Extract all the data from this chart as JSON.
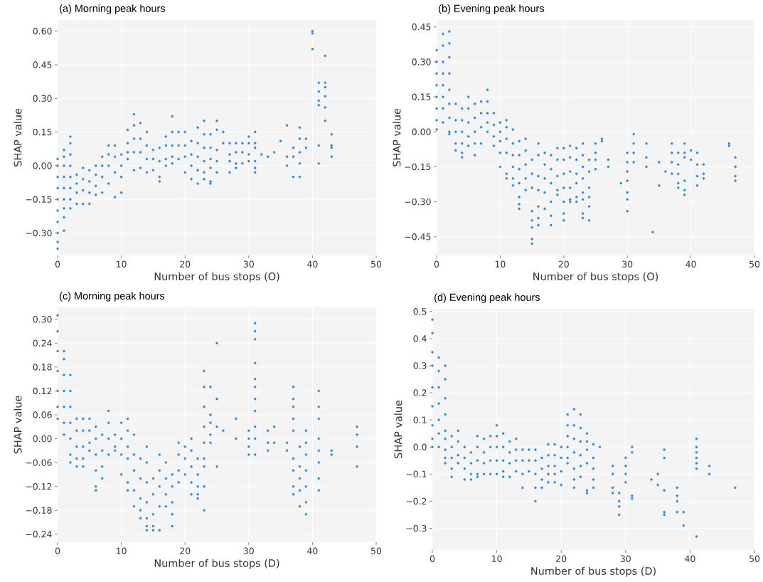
{
  "chart_data": [
    {
      "type": "scatter",
      "title": "(a) Morning peak hours",
      "xlabel": "Number of bus stops (O)",
      "ylabel": "SHAP value",
      "grid": true,
      "marker": "circle",
      "xlim": [
        0,
        50
      ],
      "xticks": [
        0,
        10,
        20,
        30,
        40,
        50
      ],
      "ylim": [
        -0.4,
        0.65
      ],
      "yticks": [
        {
          "value": -0.3,
          "label": "−0.30"
        },
        {
          "value": -0.15,
          "label": "−0.15"
        },
        {
          "value": 0,
          "label": "0.00"
        },
        {
          "value": 0.15,
          "label": "0.15"
        },
        {
          "value": 0.3,
          "label": "0.30"
        },
        {
          "value": 0.45,
          "label": "0.45"
        },
        {
          "value": 0.6,
          "label": "0.60"
        }
      ],
      "series": [
        {
          "color": "#1e88e5",
          "x": [
            0,
            0,
            0,
            0,
            0,
            0,
            0,
            0,
            0,
            0,
            1,
            1,
            1,
            1,
            1,
            1,
            1,
            1,
            1,
            2,
            2,
            2,
            2,
            2,
            2,
            2,
            2,
            3,
            3,
            3,
            3,
            4,
            4,
            4,
            4,
            5,
            5,
            5,
            5,
            6,
            6,
            6,
            6,
            7,
            7,
            7,
            7,
            8,
            8,
            8,
            8,
            9,
            9,
            9,
            9,
            10,
            10,
            10,
            10,
            11,
            11,
            11,
            11,
            12,
            12,
            12,
            12,
            12,
            13,
            13,
            13,
            13,
            14,
            14,
            14,
            14,
            15,
            15,
            15,
            16,
            16,
            16,
            16,
            17,
            17,
            17,
            17,
            18,
            18,
            18,
            18,
            18,
            19,
            19,
            19,
            20,
            20,
            20,
            20,
            21,
            21,
            21,
            21,
            22,
            22,
            22,
            22,
            22,
            23,
            23,
            23,
            23,
            23,
            23,
            24,
            24,
            24,
            24,
            24,
            24,
            25,
            25,
            25,
            25,
            25,
            26,
            26,
            27,
            27,
            27,
            27,
            28,
            28,
            28,
            28,
            29,
            29,
            29,
            30,
            30,
            30,
            30,
            31,
            31,
            31,
            31,
            31,
            31,
            32,
            33,
            34,
            35,
            36,
            36,
            36,
            37,
            37,
            37,
            38,
            38,
            38,
            38,
            38,
            39,
            39,
            40,
            40,
            40,
            41,
            41,
            41,
            41,
            41,
            41,
            42,
            42,
            42,
            42,
            42,
            42,
            43,
            43,
            43,
            43
          ],
          "values": [
            0.03,
            0.0,
            -0.05,
            -0.1,
            -0.15,
            -0.2,
            -0.25,
            -0.3,
            -0.34,
            -0.37,
            0.07,
            0.04,
            0.0,
            -0.05,
            -0.1,
            -0.15,
            -0.19,
            -0.23,
            -0.29,
            0.13,
            0.1,
            0.05,
            0.0,
            -0.05,
            -0.1,
            -0.15,
            -0.19,
            -0.04,
            -0.08,
            -0.12,
            -0.17,
            -0.01,
            -0.06,
            -0.11,
            -0.17,
            -0.02,
            -0.07,
            -0.12,
            -0.17,
            0.0,
            -0.04,
            -0.09,
            -0.13,
            0.04,
            0.0,
            -0.05,
            -0.12,
            0.09,
            0.05,
            0.0,
            -0.08,
            0.09,
            0.04,
            -0.03,
            -0.14,
            0.05,
            0.0,
            -0.05,
            -0.12,
            0.16,
            0.1,
            0.06,
            0.03,
            0.23,
            0.18,
            0.12,
            0.06,
            -0.02,
            0.19,
            0.12,
            0.06,
            -0.01,
            0.15,
            0.09,
            0.03,
            -0.03,
            0.07,
            0.03,
            -0.02,
            0.08,
            0.02,
            -0.05,
            -0.07,
            0.13,
            0.09,
            0.03,
            0.0,
            0.22,
            0.15,
            0.09,
            0.04,
            0.01,
            0.15,
            0.09,
            0.03,
            0.15,
            0.09,
            0.04,
            -0.03,
            0.11,
            0.05,
            0.0,
            -0.06,
            0.17,
            0.1,
            0.04,
            -0.02,
            -0.08,
            0.2,
            0.14,
            0.08,
            0.02,
            -0.03,
            -0.06,
            0.14,
            0.08,
            0.03,
            -0.01,
            -0.07,
            -0.08,
            0.2,
            0.16,
            0.07,
            0.02,
            -0.03,
            0.15,
            0.1,
            0.1,
            0.05,
            0.02,
            -0.03,
            0.1,
            0.06,
            0.01,
            -0.01,
            0.1,
            0.06,
            0.01,
            0.13,
            0.1,
            0.05,
            0.02,
            0.15,
            0.1,
            0.08,
            0.02,
            -0.01,
            -0.03,
            0.05,
            0.04,
            0.06,
            0.11,
            0.18,
            0.04,
            0.0,
            0.08,
            0.04,
            -0.05,
            0.17,
            0.12,
            0.06,
            0.01,
            -0.05,
            0.12,
            0.08,
            0.6,
            0.59,
            0.52,
            0.37,
            0.33,
            0.29,
            0.27,
            0.09,
            0.01,
            0.49,
            0.37,
            0.35,
            0.31,
            0.26,
            0.2,
            0.14,
            0.09,
            0.08,
            0.04
          ]
        }
      ]
    },
    {
      "type": "scatter",
      "title": "(b) Evening peak hours",
      "xlabel": "Number of bus stops (O)",
      "ylabel": "SHAP value",
      "grid": true,
      "marker": "circle",
      "xlim": [
        0,
        50
      ],
      "xticks": [
        0,
        10,
        20,
        30,
        40,
        50
      ],
      "ylim": [
        -0.53,
        0.48
      ],
      "yticks": [
        {
          "value": -0.45,
          "label": "−0.45"
        },
        {
          "value": -0.3,
          "label": "−0.30"
        },
        {
          "value": -0.15,
          "label": "−0.15"
        },
        {
          "value": 0,
          "label": "0.00"
        },
        {
          "value": 0.15,
          "label": "0.15"
        },
        {
          "value": 0.3,
          "label": "0.30"
        },
        {
          "value": 0.45,
          "label": "0.45"
        }
      ],
      "series": [
        {
          "color": "#1e88e5",
          "x": [
            0,
            0,
            0,
            0,
            0,
            0,
            0,
            0,
            1,
            1,
            1,
            1,
            1,
            1,
            1,
            1,
            2,
            2,
            2,
            2,
            2,
            2,
            2,
            2,
            2,
            3,
            3,
            3,
            3,
            3,
            4,
            4,
            4,
            4,
            4,
            4,
            5,
            5,
            5,
            5,
            5,
            6,
            6,
            6,
            6,
            6,
            7,
            7,
            7,
            7,
            8,
            8,
            8,
            8,
            8,
            9,
            9,
            9,
            9,
            10,
            10,
            10,
            10,
            10,
            11,
            11,
            11,
            11,
            11,
            11,
            12,
            12,
            12,
            12,
            12,
            12,
            13,
            13,
            13,
            13,
            13,
            13,
            13,
            14,
            14,
            14,
            14,
            14,
            15,
            15,
            15,
            15,
            15,
            15,
            15,
            15,
            16,
            16,
            16,
            16,
            16,
            16,
            16,
            17,
            17,
            17,
            17,
            17,
            18,
            18,
            18,
            18,
            18,
            18,
            19,
            19,
            19,
            19,
            19,
            20,
            20,
            20,
            20,
            20,
            20,
            20,
            21,
            21,
            21,
            21,
            21,
            21,
            22,
            22,
            22,
            22,
            22,
            22,
            23,
            23,
            23,
            23,
            23,
            23,
            23,
            23,
            24,
            24,
            24,
            24,
            24,
            24,
            25,
            25,
            25,
            25,
            26,
            26,
            27,
            27,
            29,
            30,
            30,
            30,
            30,
            30,
            30,
            30,
            31,
            31,
            31,
            31,
            33,
            33,
            33,
            34,
            35,
            35,
            36,
            37,
            37,
            37,
            37,
            38,
            38,
            38,
            38,
            38,
            39,
            39,
            39,
            39,
            39,
            39,
            40,
            40,
            41,
            41,
            41,
            41,
            42,
            42,
            42,
            46,
            46,
            47,
            47,
            47,
            47
          ],
          "values": [
            0.35,
            0.3,
            0.25,
            0.2,
            0.15,
            0.1,
            0.05,
            0.01,
            0.42,
            0.37,
            0.3,
            0.25,
            0.2,
            0.15,
            0.1,
            0.04,
            0.43,
            0.38,
            0.32,
            0.25,
            0.18,
            0.12,
            0.06,
            0.0,
            -0.01,
            0.12,
            0.05,
            0.0,
            -0.05,
            -0.08,
            0.1,
            0.05,
            0.0,
            -0.05,
            -0.09,
            -0.11,
            0.15,
            0.1,
            0.04,
            -0.02,
            -0.06,
            0.12,
            0.06,
            0.0,
            -0.05,
            -0.1,
            0.13,
            0.08,
            0.02,
            -0.05,
            0.18,
            0.13,
            0.08,
            0.04,
            0.0,
            0.08,
            0.03,
            -0.02,
            -0.06,
            0.04,
            0.0,
            -0.04,
            -0.09,
            -0.15,
            0.05,
            0.02,
            -0.03,
            -0.09,
            -0.18,
            -0.2,
            0.01,
            -0.05,
            -0.1,
            -0.15,
            -0.2,
            -0.23,
            -0.04,
            -0.1,
            -0.16,
            -0.22,
            -0.28,
            -0.31,
            -0.33,
            -0.03,
            -0.08,
            -0.14,
            -0.2,
            -0.25,
            -0.12,
            -0.18,
            -0.24,
            -0.34,
            -0.38,
            -0.41,
            -0.46,
            -0.48,
            -0.05,
            -0.1,
            -0.19,
            -0.25,
            -0.32,
            -0.37,
            -0.4,
            -0.09,
            -0.14,
            -0.2,
            -0.26,
            -0.33,
            -0.1,
            -0.16,
            -0.22,
            -0.3,
            -0.36,
            -0.4,
            -0.07,
            -0.12,
            -0.19,
            -0.25,
            -0.27,
            -0.07,
            -0.12,
            -0.18,
            -0.24,
            -0.3,
            -0.35,
            -0.38,
            -0.06,
            -0.11,
            -0.17,
            -0.24,
            -0.29,
            -0.3,
            -0.07,
            -0.12,
            -0.18,
            -0.22,
            -0.28,
            -0.3,
            -0.05,
            -0.1,
            -0.15,
            -0.2,
            -0.26,
            -0.29,
            -0.35,
            -0.37,
            -0.12,
            -0.17,
            -0.24,
            -0.28,
            -0.32,
            -0.38,
            -0.05,
            -0.09,
            -0.12,
            -0.16,
            -0.03,
            -0.04,
            -0.12,
            -0.15,
            -0.22,
            -0.09,
            -0.13,
            -0.17,
            -0.21,
            -0.26,
            -0.29,
            -0.34,
            -0.01,
            -0.05,
            -0.09,
            -0.13,
            -0.05,
            -0.11,
            -0.15,
            -0.43,
            -0.13,
            -0.23,
            -0.17,
            -0.05,
            -0.09,
            -0.13,
            -0.18,
            -0.09,
            -0.14,
            -0.18,
            -0.22,
            -0.24,
            -0.05,
            -0.09,
            -0.11,
            -0.21,
            -0.25,
            -0.27,
            -0.08,
            -0.12,
            -0.09,
            -0.14,
            -0.19,
            -0.23,
            -0.14,
            -0.18,
            -0.2,
            -0.05,
            -0.06,
            -0.11,
            -0.15,
            -0.19,
            -0.21
          ]
        }
      ]
    },
    {
      "type": "scatter",
      "title": "(c) Morning peak hours",
      "xlabel": "Number of bus stops (D)",
      "ylabel": "SHAP value",
      "grid": true,
      "marker": "circle",
      "xlim": [
        0,
        50
      ],
      "xticks": [
        0,
        10,
        20,
        30,
        40,
        50
      ],
      "ylim": [
        -0.26,
        0.33
      ],
      "yticks": [
        {
          "value": -0.24,
          "label": "−0.24"
        },
        {
          "value": -0.18,
          "label": "−0.18"
        },
        {
          "value": -0.12,
          "label": "−0.12"
        },
        {
          "value": -0.06,
          "label": "−0.06"
        },
        {
          "value": 0,
          "label": "0.00"
        },
        {
          "value": 0.06,
          "label": "0.06"
        },
        {
          "value": 0.12,
          "label": "0.12"
        },
        {
          "value": 0.18,
          "label": "0.18"
        },
        {
          "value": 0.24,
          "label": "0.24"
        },
        {
          "value": 0.3,
          "label": "0.30"
        }
      ],
      "series": [
        {
          "color": "#1e88e5",
          "x": [
            0,
            0,
            0,
            0,
            0,
            0,
            0,
            1,
            1,
            1,
            1,
            1,
            1,
            1,
            2,
            2,
            2,
            2,
            2,
            2,
            2,
            3,
            3,
            3,
            3,
            3,
            4,
            4,
            4,
            4,
            4,
            5,
            5,
            5,
            5,
            6,
            6,
            6,
            6,
            6,
            6,
            7,
            7,
            7,
            7,
            8,
            8,
            8,
            8,
            9,
            9,
            9,
            10,
            10,
            10,
            10,
            11,
            11,
            11,
            11,
            11,
            11,
            12,
            12,
            12,
            12,
            12,
            13,
            13,
            13,
            13,
            13,
            14,
            14,
            14,
            14,
            14,
            14,
            14,
            15,
            15,
            15,
            15,
            15,
            16,
            16,
            16,
            16,
            16,
            17,
            17,
            17,
            17,
            18,
            18,
            18,
            18,
            18,
            19,
            19,
            19,
            19,
            20,
            20,
            20,
            21,
            21,
            21,
            21,
            21,
            22,
            22,
            22,
            22,
            22,
            23,
            23,
            23,
            23,
            23,
            23,
            23,
            23,
            23,
            24,
            24,
            24,
            24,
            24,
            25,
            25,
            25,
            25,
            26,
            28,
            28,
            30,
            30,
            30,
            30,
            31,
            31,
            31,
            31,
            31,
            31,
            31,
            31,
            31,
            31,
            31,
            33,
            33,
            33,
            34,
            34,
            36,
            36,
            37,
            37,
            37,
            37,
            37,
            37,
            37,
            37,
            37,
            38,
            38,
            38,
            38,
            38,
            39,
            39,
            39,
            39,
            39,
            39,
            39,
            41,
            41,
            41,
            41,
            41,
            41,
            41,
            41,
            43,
            43,
            47,
            47,
            47,
            47
          ],
          "values": [
            0.31,
            0.27,
            0.22,
            0.17,
            0.12,
            0.08,
            0.05,
            0.22,
            0.2,
            0.16,
            0.12,
            0.08,
            0.04,
            0.01,
            0.16,
            0.12,
            0.08,
            0.04,
            0.0,
            -0.04,
            -0.06,
            0.05,
            0.02,
            -0.02,
            -0.05,
            -0.07,
            0.05,
            0.02,
            -0.02,
            -0.05,
            -0.07,
            0.05,
            0.02,
            -0.01,
            -0.03,
            0.03,
            0.0,
            -0.04,
            -0.08,
            -0.12,
            -0.13,
            0.01,
            -0.03,
            -0.07,
            -0.1,
            0.07,
            0.04,
            0.0,
            -0.04,
            0.01,
            -0.02,
            -0.03,
            0.04,
            0.0,
            -0.04,
            -0.09,
            0.05,
            0.02,
            -0.02,
            -0.05,
            -0.11,
            -0.13,
            0.01,
            -0.04,
            -0.08,
            -0.13,
            -0.17,
            -0.05,
            -0.1,
            -0.15,
            -0.18,
            -0.2,
            -0.02,
            -0.06,
            -0.11,
            -0.16,
            -0.2,
            -0.22,
            -0.23,
            -0.1,
            -0.14,
            -0.19,
            -0.22,
            -0.23,
            -0.04,
            -0.08,
            -0.12,
            -0.17,
            -0.23,
            -0.06,
            -0.1,
            -0.14,
            -0.17,
            -0.09,
            -0.12,
            -0.16,
            -0.19,
            -0.22,
            -0.01,
            -0.04,
            -0.08,
            -0.11,
            -0.02,
            -0.05,
            -0.09,
            0.0,
            -0.03,
            -0.07,
            -0.11,
            -0.14,
            -0.05,
            -0.09,
            -0.12,
            -0.14,
            -0.15,
            0.17,
            0.13,
            0.08,
            0.03,
            -0.01,
            -0.05,
            -0.07,
            -0.12,
            -0.18,
            0.13,
            0.06,
            0.04,
            0.01,
            -0.01,
            0.24,
            0.1,
            0.03,
            -0.07,
            0.02,
            0.05,
            0.0,
            0.02,
            0.0,
            -0.02,
            -0.04,
            0.29,
            0.27,
            0.25,
            0.19,
            0.15,
            0.13,
            0.1,
            0.07,
            0.03,
            0.0,
            -0.04,
            0.02,
            -0.01,
            -0.03,
            0.03,
            -0.01,
            -0.01,
            -0.03,
            0.13,
            0.1,
            0.08,
            0.05,
            0.02,
            -0.05,
            -0.08,
            -0.12,
            -0.14,
            -0.02,
            -0.07,
            -0.1,
            -0.13,
            -0.17,
            0.02,
            -0.01,
            -0.04,
            -0.08,
            -0.12,
            -0.16,
            -0.19,
            0.12,
            0.08,
            0.05,
            0.0,
            -0.03,
            -0.06,
            -0.1,
            -0.13,
            -0.03,
            -0.04,
            0.03,
            0.01,
            -0.02,
            -0.07
          ]
        }
      ]
    },
    {
      "type": "scatter",
      "title": "(d) Evening peak hours",
      "xlabel": "Number of bus stops (D)",
      "ylabel": "SHAP value",
      "grid": true,
      "marker": "circle",
      "xlim": [
        0,
        50
      ],
      "xticks": [
        0,
        10,
        20,
        30,
        40,
        50
      ],
      "ylim": [
        -0.38,
        0.51
      ],
      "yticks": [
        {
          "value": -0.3,
          "label": "−0.3"
        },
        {
          "value": -0.2,
          "label": "−0.2"
        },
        {
          "value": -0.1,
          "label": "−0.1"
        },
        {
          "value": 0,
          "label": "0.0"
        },
        {
          "value": 0.1,
          "label": "0.1"
        },
        {
          "value": 0.2,
          "label": "0.2"
        },
        {
          "value": 0.3,
          "label": "0.3"
        },
        {
          "value": 0.4,
          "label": "0.4"
        },
        {
          "value": 0.5,
          "label": "0.5"
        }
      ],
      "series": [
        {
          "color": "#1e88e5",
          "x": [
            0,
            0,
            0,
            0,
            0,
            0,
            0,
            0,
            0,
            1,
            1,
            1,
            1,
            1,
            1,
            1,
            2,
            2,
            2,
            2,
            2,
            2,
            2,
            2,
            2,
            3,
            3,
            3,
            3,
            3,
            4,
            4,
            4,
            4,
            5,
            5,
            5,
            5,
            6,
            6,
            6,
            6,
            7,
            7,
            7,
            7,
            7,
            8,
            8,
            8,
            8,
            9,
            9,
            9,
            9,
            10,
            10,
            10,
            10,
            10,
            11,
            11,
            11,
            11,
            11,
            12,
            12,
            12,
            12,
            13,
            13,
            13,
            13,
            14,
            14,
            14,
            14,
            15,
            15,
            15,
            16,
            16,
            16,
            16,
            16,
            17,
            17,
            17,
            17,
            18,
            18,
            18,
            18,
            18,
            19,
            19,
            19,
            19,
            19,
            20,
            20,
            20,
            20,
            21,
            21,
            21,
            21,
            21,
            21,
            22,
            22,
            22,
            22,
            22,
            22,
            22,
            23,
            23,
            23,
            23,
            23,
            23,
            24,
            24,
            24,
            24,
            24,
            24,
            25,
            25,
            25,
            25,
            25,
            26,
            28,
            28,
            28,
            28,
            29,
            29,
            29,
            29,
            30,
            30,
            30,
            30,
            31,
            31,
            31,
            31,
            34,
            35,
            35,
            36,
            36,
            36,
            36,
            36,
            38,
            38,
            38,
            38,
            39,
            39,
            41,
            41,
            41,
            41,
            41,
            41,
            41,
            43,
            43,
            47
          ],
          "values": [
            0.47,
            0.42,
            0.35,
            0.3,
            0.22,
            0.15,
            0.08,
            0.03,
            0.0,
            0.33,
            0.28,
            0.22,
            0.16,
            0.1,
            0.05,
            0.0,
            0.3,
            0.25,
            0.18,
            0.12,
            0.06,
            0.03,
            -0.01,
            -0.04,
            -0.06,
            0.04,
            0.0,
            -0.04,
            -0.08,
            -0.11,
            0.06,
            0.02,
            -0.03,
            -0.06,
            0.0,
            -0.04,
            -0.08,
            -0.12,
            -0.02,
            -0.06,
            -0.1,
            -0.12,
            0.04,
            0.0,
            -0.05,
            -0.1,
            -0.11,
            0.03,
            -0.02,
            -0.06,
            -0.1,
            0.04,
            0.0,
            -0.05,
            -0.1,
            0.08,
            0.04,
            0.0,
            -0.05,
            -0.1,
            0.05,
            0.0,
            -0.05,
            -0.09,
            -0.11,
            0.02,
            -0.02,
            -0.06,
            -0.11,
            0.03,
            -0.01,
            -0.05,
            -0.09,
            -0.01,
            -0.05,
            -0.1,
            -0.15,
            -0.01,
            -0.05,
            -0.09,
            -0.01,
            -0.05,
            -0.1,
            -0.15,
            -0.2,
            -0.04,
            -0.08,
            -0.12,
            -0.15,
            0.01,
            -0.03,
            -0.07,
            -0.1,
            -0.13,
            0.01,
            -0.03,
            -0.07,
            -0.1,
            -0.13,
            0.0,
            -0.04,
            -0.09,
            -0.14,
            0.12,
            0.08,
            0.04,
            0.0,
            -0.04,
            -0.06,
            0.14,
            0.08,
            0.03,
            -0.02,
            -0.08,
            -0.12,
            -0.15,
            0.12,
            0.07,
            0.02,
            -0.03,
            -0.07,
            -0.11,
            0.05,
            0.02,
            -0.01,
            -0.06,
            -0.16,
            -0.17,
            0.01,
            -0.04,
            -0.08,
            -0.12,
            -0.15,
            0.0,
            -0.07,
            -0.1,
            -0.15,
            -0.17,
            -0.17,
            -0.2,
            -0.22,
            -0.25,
            -0.04,
            -0.07,
            -0.1,
            -0.13,
            0.0,
            -0.02,
            -0.18,
            -0.19,
            -0.12,
            -0.1,
            -0.14,
            -0.01,
            -0.04,
            -0.16,
            -0.24,
            -0.25,
            -0.15,
            -0.18,
            -0.2,
            -0.24,
            -0.24,
            -0.29,
            0.03,
            0.0,
            -0.02,
            -0.04,
            -0.06,
            -0.08,
            -0.33,
            -0.07,
            -0.1,
            -0.15
          ]
        }
      ]
    }
  ]
}
